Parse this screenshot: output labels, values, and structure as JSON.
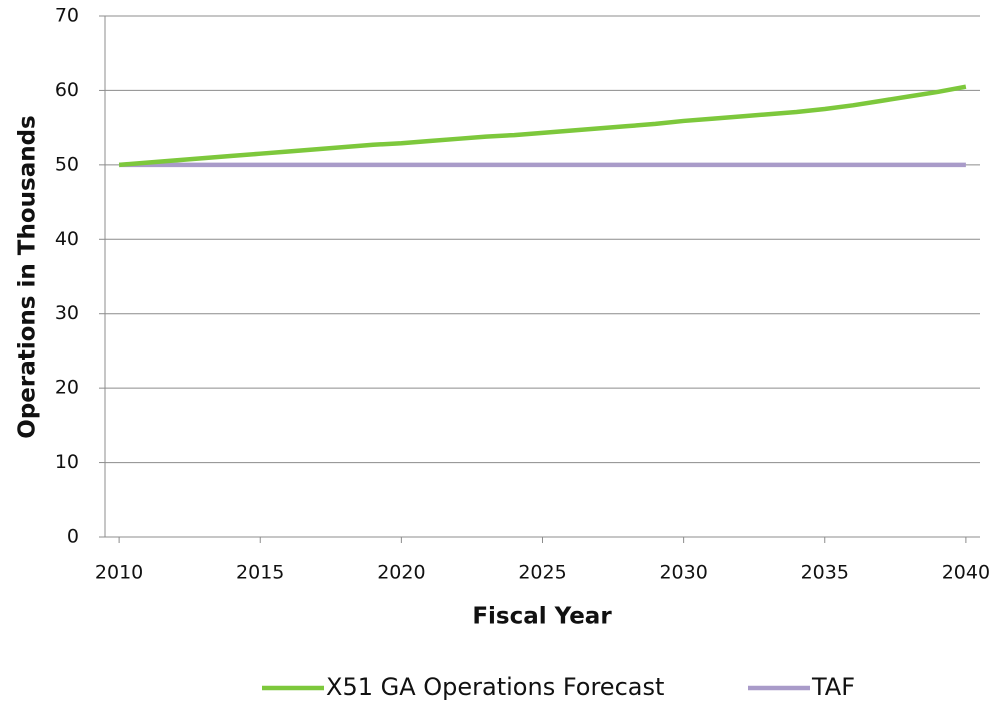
{
  "chart_data": {
    "type": "line",
    "x_label": "Fiscal Year",
    "y_label": "Operations in Thousands",
    "x": [
      2010,
      2011,
      2012,
      2013,
      2014,
      2015,
      2016,
      2017,
      2018,
      2019,
      2020,
      2021,
      2022,
      2023,
      2024,
      2025,
      2026,
      2027,
      2028,
      2029,
      2030,
      2031,
      2032,
      2033,
      2034,
      2035,
      2036,
      2037,
      2038,
      2039,
      2040
    ],
    "series": [
      {
        "name": "X51 GA Operations Forecast",
        "color": "#7dc83c",
        "values": [
          50.0,
          50.3,
          50.6,
          50.9,
          51.2,
          51.5,
          51.8,
          52.1,
          52.4,
          52.7,
          52.9,
          53.2,
          53.5,
          53.8,
          54.0,
          54.3,
          54.6,
          54.9,
          55.2,
          55.5,
          55.9,
          56.2,
          56.5,
          56.8,
          57.1,
          57.5,
          58.0,
          58.6,
          59.2,
          59.8,
          60.5
        ]
      },
      {
        "name": "TAF",
        "color": "#a99bc9",
        "values": [
          50,
          50,
          50,
          50,
          50,
          50,
          50,
          50,
          50,
          50,
          50,
          50,
          50,
          50,
          50,
          50,
          50,
          50,
          50,
          50,
          50,
          50,
          50,
          50,
          50,
          50,
          50,
          50,
          50,
          50,
          50
        ]
      }
    ],
    "xlim": [
      2009.5,
      2040.5
    ],
    "xticks": [
      2010,
      2015,
      2020,
      2025,
      2030,
      2035,
      2040
    ],
    "ylim": [
      0,
      70
    ],
    "yticks": [
      0,
      10,
      20,
      30,
      40,
      50,
      60,
      70
    ],
    "grid": true,
    "legend": "bottom"
  }
}
